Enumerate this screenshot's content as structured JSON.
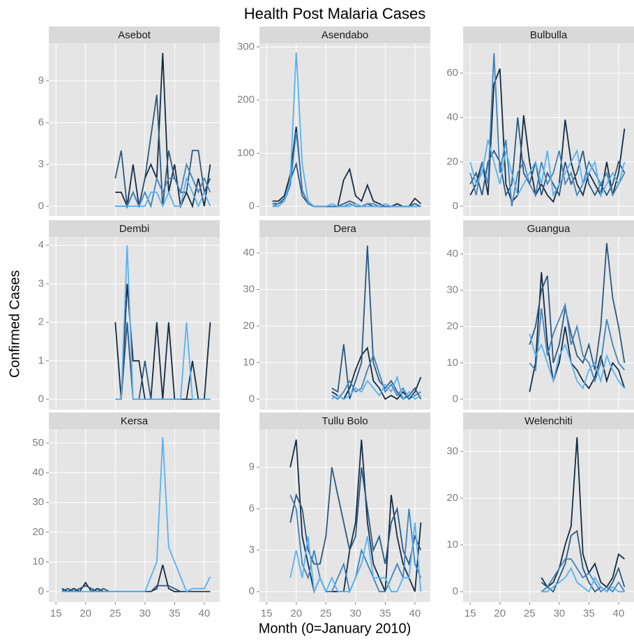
{
  "title": "Health Post Malaria Cases",
  "x_label": "Month (0=January 2010)",
  "y_label": "Confirmed Cases",
  "chart_data": [
    {
      "type": "line",
      "title": "Asebot",
      "x": [
        25,
        26,
        27,
        28,
        29,
        30,
        31,
        32,
        33,
        34,
        35,
        36,
        37,
        38,
        39,
        40,
        41
      ],
      "series": [
        {
          "color": "#132b43",
          "values": [
            1,
            1,
            0,
            3,
            0,
            2,
            3,
            2,
            11,
            1,
            3,
            0,
            1,
            0,
            2,
            0,
            3
          ]
        },
        {
          "color": "#2a5880",
          "values": [
            2,
            4,
            0,
            1,
            0,
            2,
            5,
            8,
            0,
            4,
            2,
            1,
            1,
            4,
            4,
            1,
            2
          ]
        },
        {
          "color": "#3f82bf",
          "values": [
            0,
            0,
            0,
            1,
            0,
            1,
            0,
            2,
            1,
            2,
            2,
            1,
            3,
            2,
            1,
            2,
            1
          ]
        },
        {
          "color": "#56b1f7",
          "values": [
            0,
            0,
            0,
            0,
            0,
            0,
            1,
            1,
            0,
            1,
            0,
            0,
            2,
            1,
            0,
            1,
            0
          ]
        }
      ],
      "xlim": [
        13.8,
        42.6
      ],
      "xticks": [
        15,
        20,
        25,
        30,
        35,
        40
      ],
      "ylim": [
        -0.7,
        11.7
      ],
      "yticks": [
        0,
        3,
        6,
        9
      ]
    },
    {
      "type": "line",
      "title": "Asendabo",
      "x": [
        16,
        17,
        18,
        19,
        20,
        21,
        22,
        23,
        24,
        25,
        26,
        27,
        28,
        29,
        30,
        31,
        32,
        33,
        34,
        35,
        36,
        37,
        38,
        39,
        40,
        41
      ],
      "series": [
        {
          "color": "#132b43",
          "values": [
            10,
            10,
            20,
            60,
            150,
            30,
            5,
            0,
            0,
            0,
            0,
            0,
            50,
            70,
            20,
            10,
            40,
            10,
            5,
            0,
            0,
            5,
            0,
            0,
            15,
            5
          ]
        },
        {
          "color": "#2a5880",
          "values": [
            5,
            5,
            15,
            50,
            80,
            20,
            5,
            0,
            0,
            0,
            0,
            0,
            5,
            10,
            5,
            0,
            5,
            0,
            0,
            0,
            0,
            0,
            0,
            0,
            5,
            0
          ]
        },
        {
          "color": "#3f82bf",
          "values": [
            0,
            5,
            10,
            40,
            140,
            30,
            5,
            0,
            0,
            0,
            0,
            0,
            0,
            5,
            0,
            0,
            5,
            5,
            0,
            0,
            0,
            0,
            0,
            0,
            0,
            0
          ]
        },
        {
          "color": "#56b1f7",
          "values": [
            0,
            0,
            10,
            50,
            290,
            80,
            10,
            0,
            0,
            0,
            5,
            0,
            0,
            0,
            5,
            0,
            0,
            0,
            0,
            5,
            0,
            0,
            0,
            0,
            0,
            0
          ]
        }
      ],
      "xlim": [
        13.8,
        42.6
      ],
      "xticks": [
        15,
        20,
        25,
        30,
        35,
        40
      ],
      "ylim": [
        -18,
        307
      ],
      "yticks": [
        0,
        100,
        200,
        300
      ]
    },
    {
      "type": "line",
      "title": "Bulbulla",
      "x": [
        15,
        16,
        17,
        18,
        19,
        20,
        21,
        22,
        23,
        24,
        25,
        26,
        27,
        28,
        29,
        30,
        31,
        32,
        33,
        34,
        35,
        36,
        37,
        38,
        39,
        40,
        41
      ],
      "series": [
        {
          "color": "#132b43",
          "values": [
            5,
            10,
            20,
            5,
            55,
            62,
            10,
            2,
            5,
            41,
            20,
            5,
            10,
            5,
            2,
            10,
            39,
            20,
            10,
            5,
            15,
            10,
            5,
            20,
            5,
            15,
            35
          ]
        },
        {
          "color": "#2a5880",
          "values": [
            10,
            15,
            5,
            20,
            25,
            20,
            5,
            10,
            40,
            15,
            10,
            20,
            5,
            15,
            10,
            5,
            20,
            10,
            15,
            25,
            10,
            5,
            10,
            5,
            10,
            20,
            15
          ]
        },
        {
          "color": "#3f82bf",
          "values": [
            15,
            5,
            20,
            10,
            69,
            15,
            30,
            0,
            15,
            20,
            10,
            5,
            20,
            10,
            15,
            25,
            10,
            15,
            5,
            10,
            20,
            15,
            10,
            15,
            5,
            10,
            15
          ]
        },
        {
          "color": "#56b1f7",
          "values": [
            20,
            10,
            15,
            30,
            20,
            10,
            25,
            15,
            5,
            10,
            15,
            20,
            10,
            25,
            5,
            10,
            15,
            20,
            25,
            10,
            15,
            20,
            5,
            10,
            15,
            10,
            20
          ]
        }
      ],
      "xlim": [
        13.8,
        42.6
      ],
      "xticks": [
        15,
        20,
        25,
        30,
        35,
        40
      ],
      "ylim": [
        -4.4,
        73.5
      ],
      "yticks": [
        0,
        20,
        40,
        60
      ]
    },
    {
      "type": "line",
      "title": "Dembi",
      "x": [
        25,
        26,
        27,
        28,
        29,
        30,
        31,
        32,
        33,
        34,
        35,
        36,
        37,
        38,
        39,
        40,
        41
      ],
      "series": [
        {
          "color": "#132b43",
          "values": [
            2,
            0,
            3,
            1,
            1,
            0,
            0,
            2,
            0,
            2,
            0,
            0,
            0,
            1,
            0,
            0,
            2
          ]
        },
        {
          "color": "#2a5880",
          "values": [
            0,
            0,
            2,
            0,
            0,
            1,
            0,
            0,
            0,
            0,
            0,
            0,
            0,
            0,
            0,
            0,
            0
          ]
        },
        {
          "color": "#56b1f7",
          "values": [
            0,
            0,
            4,
            0,
            0,
            0,
            0,
            0,
            0,
            0,
            0,
            0,
            2,
            0,
            0,
            0,
            0
          ]
        }
      ],
      "xlim": [
        13.8,
        42.6
      ],
      "xticks": [
        15,
        20,
        25,
        30,
        35,
        40
      ],
      "ylim": [
        -0.27,
        4.22
      ],
      "yticks": [
        0,
        1,
        2,
        3,
        4
      ]
    },
    {
      "type": "line",
      "title": "Dera",
      "x": [
        26,
        27,
        28,
        29,
        30,
        31,
        32,
        33,
        34,
        35,
        36,
        37,
        38,
        39,
        40,
        41
      ],
      "series": [
        {
          "color": "#132b43",
          "values": [
            2,
            1,
            0,
            3,
            8,
            12,
            14,
            5,
            3,
            0,
            1,
            0,
            2,
            0,
            2,
            6
          ]
        },
        {
          "color": "#2a5880",
          "values": [
            3,
            2,
            15,
            0,
            5,
            10,
            42,
            10,
            5,
            3,
            5,
            2,
            0,
            1,
            3,
            0
          ]
        },
        {
          "color": "#3f82bf",
          "values": [
            1,
            0,
            2,
            5,
            2,
            3,
            8,
            12,
            7,
            2,
            4,
            1,
            3,
            0,
            1,
            2
          ]
        },
        {
          "color": "#56b1f7",
          "values": [
            0,
            1,
            0,
            1,
            3,
            2,
            5,
            3,
            1,
            4,
            2,
            6,
            0,
            2,
            0,
            1
          ]
        }
      ],
      "xlim": [
        13.8,
        42.6
      ],
      "xticks": [
        15,
        20,
        25,
        30,
        35,
        40
      ],
      "ylim": [
        -2.9,
        44.4
      ],
      "yticks": [
        0,
        10,
        20,
        30,
        40
      ]
    },
    {
      "type": "line",
      "title": "Guangua",
      "x": [
        25,
        26,
        27,
        28,
        29,
        30,
        31,
        32,
        33,
        34,
        35,
        36,
        37,
        38,
        39,
        40,
        41
      ],
      "series": [
        {
          "color": "#132b43",
          "values": [
            2,
            10,
            35,
            15,
            5,
            10,
            20,
            10,
            8,
            5,
            3,
            6,
            12,
            5,
            10,
            8,
            3
          ]
        },
        {
          "color": "#2a5880",
          "values": [
            15,
            20,
            30,
            34,
            10,
            15,
            25,
            18,
            12,
            10,
            15,
            8,
            20,
            43,
            28,
            20,
            10
          ]
        },
        {
          "color": "#3f82bf",
          "values": [
            10,
            8,
            25,
            12,
            18,
            22,
            26,
            15,
            20,
            12,
            10,
            5,
            10,
            22,
            15,
            10,
            8
          ]
        },
        {
          "color": "#56b1f7",
          "values": [
            18,
            12,
            15,
            10,
            5,
            12,
            15,
            10,
            5,
            3,
            8,
            10,
            5,
            12,
            8,
            5,
            3
          ]
        }
      ],
      "xlim": [
        13.8,
        42.6
      ],
      "xticks": [
        15,
        20,
        25,
        30,
        35,
        40
      ],
      "ylim": [
        -2.9,
        44.7
      ],
      "yticks": [
        0,
        10,
        20,
        30,
        40
      ]
    },
    {
      "type": "line",
      "title": "Kersa",
      "x": [
        16,
        17,
        18,
        19,
        20,
        21,
        22,
        23,
        24,
        25,
        26,
        27,
        28,
        29,
        30,
        31,
        32,
        33,
        34,
        35,
        36,
        37,
        38,
        39,
        40,
        41
      ],
      "series": [
        {
          "color": "#132b43",
          "values": [
            1,
            0,
            1,
            0,
            3,
            0,
            1,
            0,
            0,
            0,
            0,
            0,
            0,
            0,
            0,
            0,
            1,
            9,
            1,
            0,
            0,
            0,
            0,
            0,
            0,
            0
          ]
        },
        {
          "color": "#2a5880",
          "values": [
            0,
            1,
            0,
            1,
            2,
            1,
            0,
            1,
            0,
            0,
            0,
            0,
            0,
            0,
            0,
            0,
            2,
            2,
            2,
            1,
            0,
            0,
            0,
            0,
            0,
            0
          ]
        },
        {
          "color": "#56b1f7",
          "values": [
            0,
            0,
            0,
            0,
            0,
            0,
            0,
            0,
            0,
            0,
            0,
            0,
            0,
            0,
            0,
            5,
            10,
            52,
            15,
            10,
            5,
            0,
            1,
            1,
            1,
            5
          ]
        }
      ],
      "xlim": [
        13.8,
        42.6
      ],
      "xticks": [
        15,
        20,
        25,
        30,
        35,
        40
      ],
      "ylim": [
        -3.5,
        54.7
      ],
      "yticks": [
        0,
        10,
        20,
        30,
        40,
        50
      ]
    },
    {
      "type": "line",
      "title": "Tullu Bolo",
      "x": [
        19,
        20,
        21,
        22,
        23,
        24,
        25,
        26,
        27,
        28,
        29,
        30,
        31,
        32,
        33,
        34,
        35,
        36,
        37,
        38,
        39,
        40,
        41
      ],
      "series": [
        {
          "color": "#132b43",
          "values": [
            9,
            11,
            4,
            2,
            0,
            1,
            0,
            0,
            0,
            0,
            3,
            5,
            11,
            5,
            2,
            1,
            0,
            7,
            4,
            2,
            1,
            0,
            5
          ]
        },
        {
          "color": "#2a5880",
          "values": [
            5,
            7,
            6,
            3,
            2,
            2,
            4,
            9,
            7,
            5,
            3,
            4,
            9,
            6,
            3,
            4,
            2,
            5,
            6,
            3,
            2,
            4,
            3
          ]
        },
        {
          "color": "#3f82bf",
          "values": [
            7,
            6,
            2,
            1,
            3,
            1,
            0,
            0,
            1,
            2,
            0,
            1,
            3,
            2,
            1,
            0,
            0,
            1,
            2,
            1,
            6,
            2,
            1
          ]
        },
        {
          "color": "#56b1f7",
          "values": [
            1,
            3,
            1,
            4,
            0,
            1,
            0,
            1,
            0,
            0,
            0,
            1,
            2,
            4,
            1,
            1,
            1,
            0,
            0,
            1,
            1,
            5,
            0
          ]
        }
      ],
      "xlim": [
        13.8,
        42.6
      ],
      "xticks": [
        15,
        20,
        25,
        30,
        35,
        40
      ],
      "ylim": [
        -0.75,
        11.76
      ],
      "yticks": [
        0,
        3,
        6,
        9
      ]
    },
    {
      "type": "line",
      "title": "Welenchiti",
      "x": [
        27,
        28,
        29,
        30,
        31,
        32,
        33,
        34,
        35,
        36,
        37,
        38,
        39,
        40,
        41
      ],
      "series": [
        {
          "color": "#132b43",
          "values": [
            3,
            1,
            2,
            5,
            10,
            14,
            33,
            8,
            4,
            6,
            2,
            1,
            3,
            8,
            7
          ]
        },
        {
          "color": "#2a5880",
          "values": [
            2,
            1,
            0,
            3,
            6,
            12,
            13,
            5,
            2,
            0,
            1,
            0,
            2,
            5,
            1
          ]
        },
        {
          "color": "#3f82bf",
          "values": [
            0,
            1,
            3,
            5,
            7,
            7,
            5,
            3,
            4,
            2,
            0,
            1,
            0,
            2,
            0
          ]
        },
        {
          "color": "#56b1f7",
          "values": [
            0,
            0,
            1,
            2,
            3,
            5,
            2,
            1,
            0,
            3,
            1,
            0,
            1,
            0,
            0
          ]
        }
      ],
      "xlim": [
        13.8,
        42.6
      ],
      "xticks": [
        15,
        20,
        25,
        30,
        35,
        40
      ],
      "ylim": [
        -2.2,
        34.75
      ],
      "yticks": [
        0,
        10,
        20,
        30
      ]
    }
  ]
}
